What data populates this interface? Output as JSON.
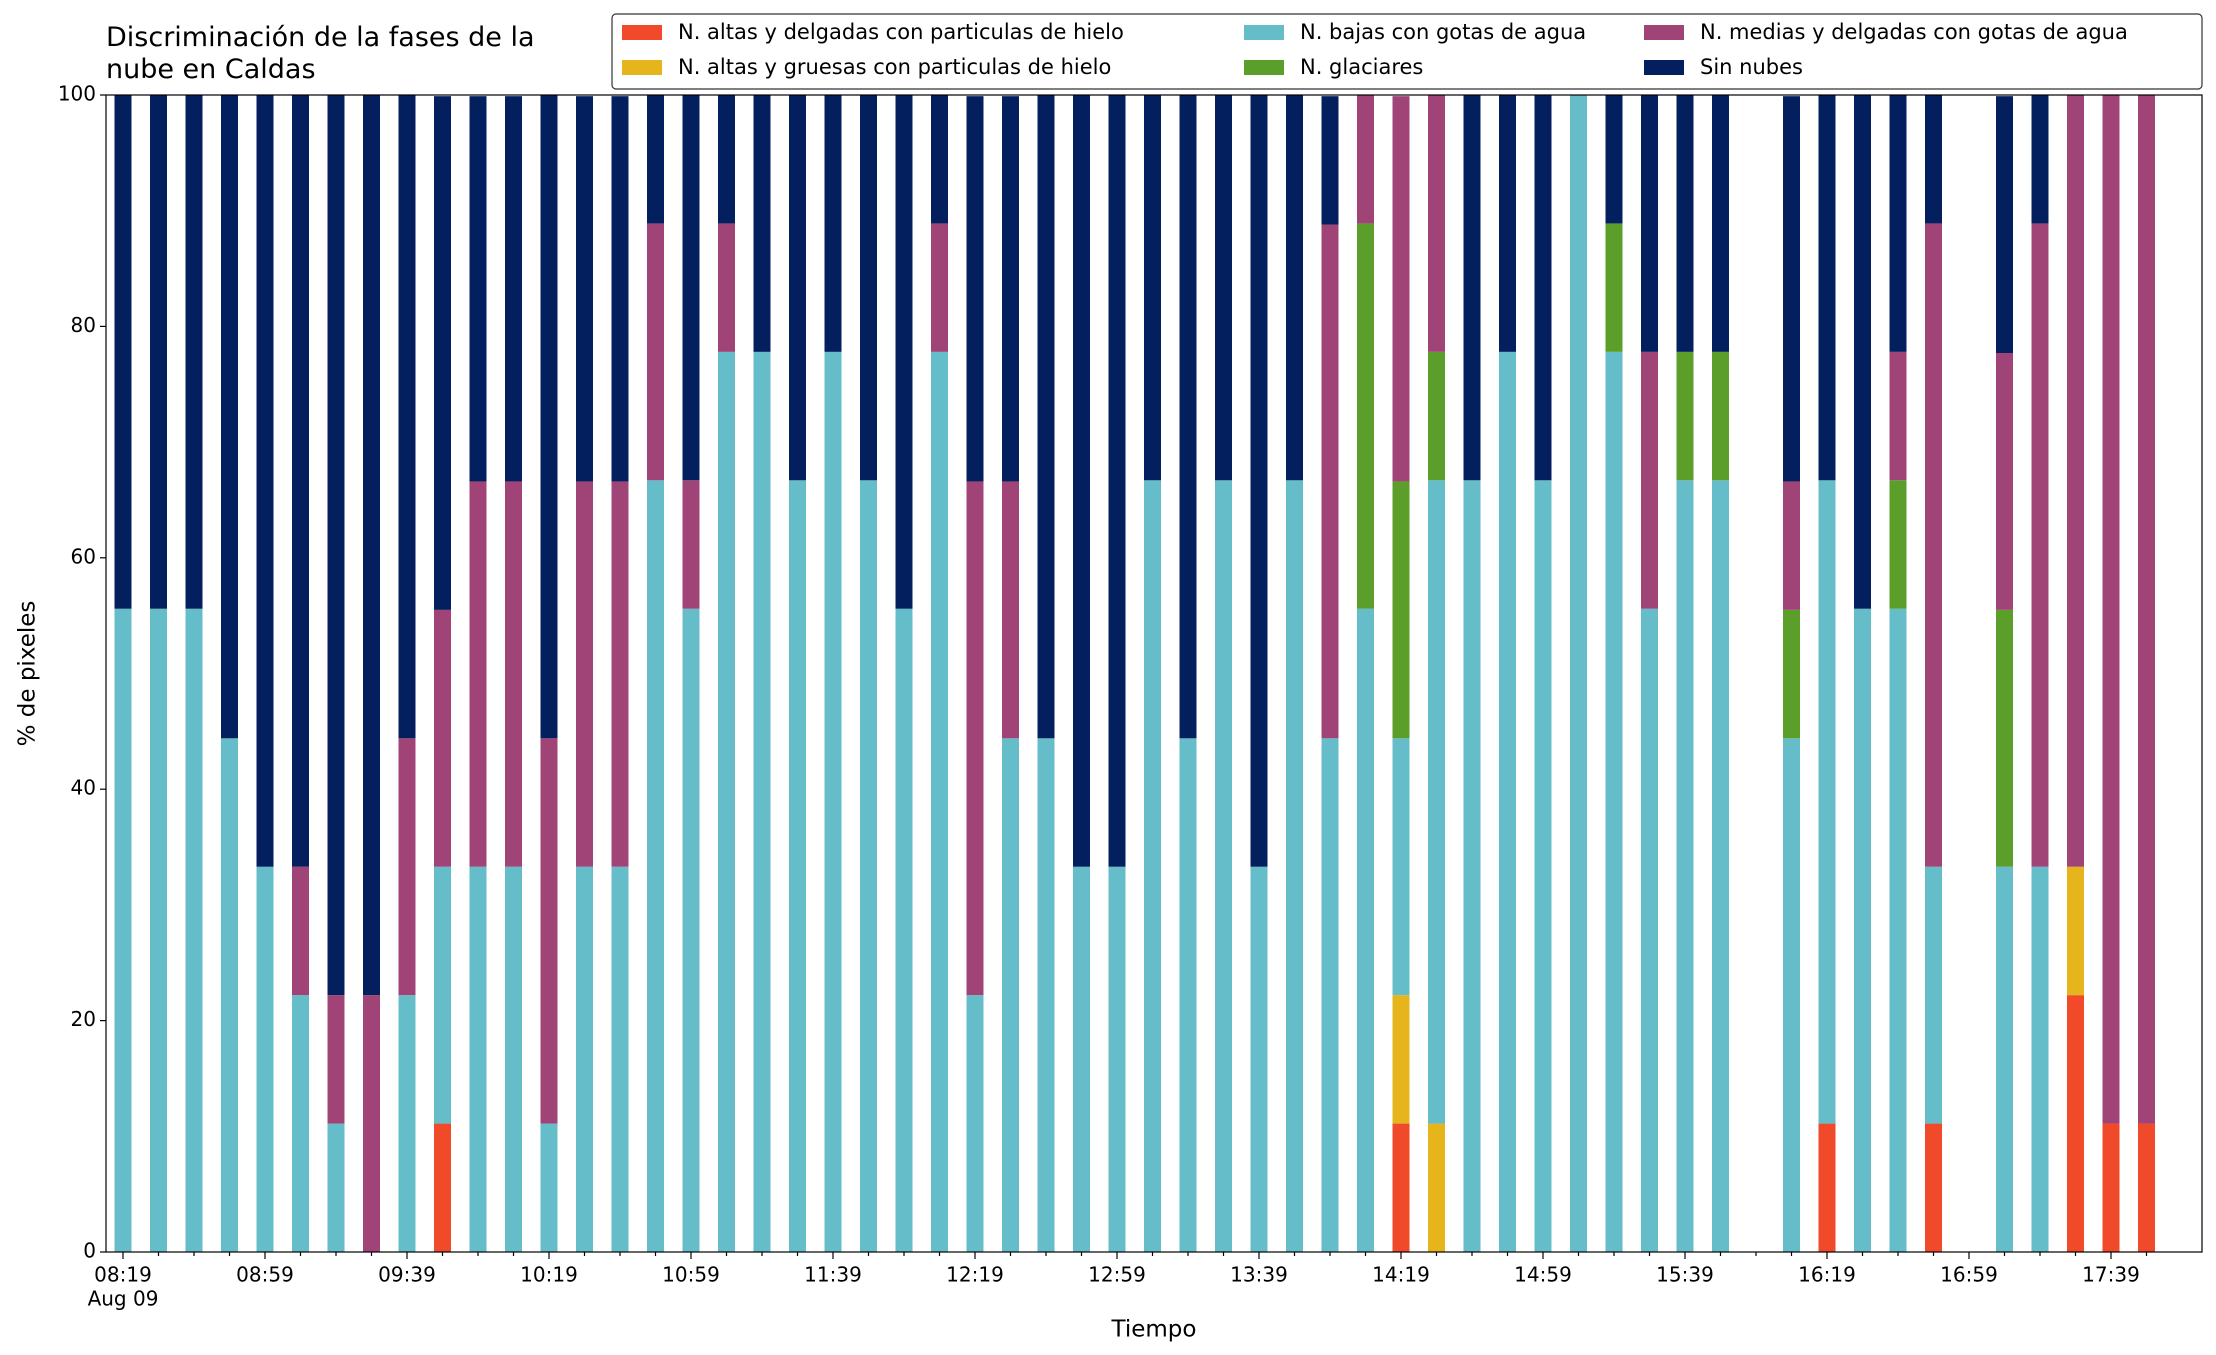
{
  "chart_data": {
    "type": "stacked_bar",
    "title": "Discriminación de la fases de la\nnube en Caldas",
    "xlabel": "Tiempo",
    "ylabel": "% de pixeles",
    "date": "Aug 09",
    "categories": [
      "08:19",
      null,
      null,
      null,
      "08:59",
      null,
      null,
      null,
      "09:39",
      null,
      null,
      null,
      "10:19",
      null,
      null,
      null,
      "10:59",
      null,
      null,
      null,
      "11:39",
      null,
      null,
      null,
      "12:19",
      null,
      null,
      null,
      "12:59",
      null,
      null,
      null,
      "13:39",
      null,
      null,
      null,
      "14:19",
      null,
      null,
      null,
      "14:59",
      null,
      null,
      null,
      "15:39",
      null,
      null,
      null,
      "16:19",
      null,
      null,
      null,
      "16:59",
      null,
      null,
      null,
      "17:39",
      null
    ],
    "ylim": [
      0,
      100
    ],
    "yticks": [
      0,
      20,
      40,
      60,
      80,
      100
    ],
    "legend": "top-right",
    "series": [
      {
        "name": "N. altas y delgadas con particulas de hielo",
        "color": "#f04a2a",
        "values": [
          0,
          0,
          0,
          0,
          0,
          0,
          0,
          0,
          0,
          11.1,
          0,
          0,
          0,
          0,
          0,
          0,
          0,
          0,
          0,
          0,
          0,
          0,
          0,
          0,
          0,
          0,
          0,
          0,
          0,
          0,
          0,
          0,
          0,
          0,
          0,
          0,
          11.1,
          0,
          0,
          0,
          0,
          0,
          0,
          0,
          0,
          0,
          null,
          0,
          11.1,
          0,
          0,
          11.1,
          null,
          0,
          0,
          22.2,
          11.1,
          11.1
        ]
      },
      {
        "name": "N. altas y gruesas con particulas de hielo",
        "color": "#e6b51c",
        "values": [
          0,
          0,
          0,
          0,
          0,
          0,
          0,
          0,
          0,
          0,
          0,
          0,
          0,
          0,
          0,
          0,
          0,
          0,
          0,
          0,
          0,
          0,
          0,
          0,
          0,
          0,
          0,
          0,
          0,
          0,
          0,
          0,
          0,
          0,
          0,
          0,
          11.1,
          11.1,
          0,
          0,
          0,
          0,
          0,
          0,
          0,
          0,
          null,
          0,
          0,
          0,
          0,
          0,
          null,
          0,
          0,
          11.1,
          0,
          0
        ]
      },
      {
        "name": "N. bajas con gotas de agua",
        "color": "#65bdc9",
        "values": [
          55.6,
          55.6,
          55.6,
          44.4,
          33.3,
          22.2,
          11.1,
          0,
          22.2,
          22.2,
          33.3,
          33.3,
          11.1,
          33.3,
          33.3,
          66.7,
          55.6,
          77.8,
          77.8,
          66.7,
          77.8,
          66.7,
          55.6,
          77.8,
          22.2,
          44.4,
          44.4,
          33.3,
          33.3,
          66.7,
          44.4,
          66.7,
          33.3,
          66.7,
          44.4,
          55.6,
          22.2,
          55.6,
          66.7,
          77.8,
          66.7,
          100,
          77.8,
          55.6,
          66.7,
          66.7,
          null,
          44.4,
          55.6,
          55.6,
          55.6,
          22.2,
          null,
          33.3,
          33.3,
          0,
          0,
          0
        ]
      },
      {
        "name": "N. glaciares",
        "color": "#5b9e2a",
        "values": [
          0,
          0,
          0,
          0,
          0,
          0,
          0,
          0,
          0,
          0,
          0,
          0,
          0,
          0,
          0,
          0,
          0,
          0,
          0,
          0,
          0,
          0,
          0,
          0,
          0,
          0,
          0,
          0,
          0,
          0,
          0,
          0,
          0,
          0,
          0,
          33.3,
          22.2,
          11.1,
          0,
          0,
          0,
          0,
          11.1,
          0,
          11.1,
          11.1,
          null,
          11.1,
          0,
          0,
          11.1,
          0,
          null,
          22.2,
          0,
          0,
          0,
          0
        ]
      },
      {
        "name": "N. medias y delgadas con gotas de agua",
        "color": "#a04478",
        "values": [
          0,
          0,
          0,
          0,
          0,
          11.1,
          11.1,
          22.2,
          22.2,
          22.2,
          33.3,
          33.3,
          33.3,
          33.3,
          33.3,
          22.2,
          11.1,
          11.1,
          0,
          0,
          0,
          0,
          0,
          11.1,
          44.4,
          22.2,
          0,
          0,
          0,
          0,
          0,
          0,
          0,
          0,
          44.4,
          11.1,
          33.3,
          22.2,
          0,
          0,
          0,
          0,
          0,
          22.2,
          0,
          0,
          null,
          11.1,
          0,
          0,
          11.1,
          55.6,
          null,
          22.2,
          55.6,
          66.7,
          88.9,
          88.9
        ]
      },
      {
        "name": "Sin nubes",
        "color": "#041f5e",
        "values": [
          44.4,
          44.4,
          44.4,
          55.6,
          66.7,
          66.7,
          77.8,
          77.8,
          55.6,
          44.4,
          33.3,
          33.3,
          55.6,
          33.3,
          33.3,
          11.1,
          33.3,
          11.1,
          22.2,
          33.3,
          22.2,
          33.3,
          44.4,
          11.1,
          33.3,
          33.3,
          55.6,
          66.7,
          66.7,
          33.3,
          55.6,
          33.3,
          66.7,
          33.3,
          11.1,
          0,
          0,
          0,
          33.3,
          22.2,
          33.3,
          0,
          11.1,
          22.2,
          22.2,
          22.2,
          null,
          33.3,
          33.3,
          44.4,
          22.2,
          11.1,
          null,
          22.2,
          11.1,
          0,
          0,
          0
        ]
      }
    ]
  }
}
